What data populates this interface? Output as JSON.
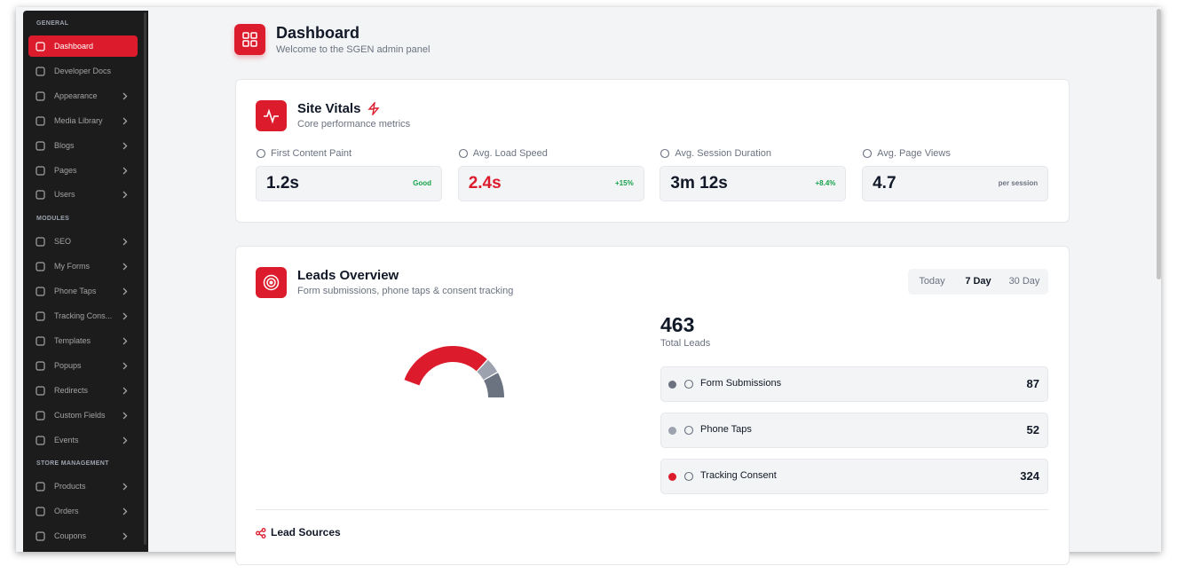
{
  "sidebar": {
    "sections": [
      {
        "title": "GENERAL",
        "items": [
          {
            "label": "Dashboard",
            "active": true,
            "submenu": false
          },
          {
            "label": "Developer Docs",
            "active": false,
            "submenu": false
          },
          {
            "label": "Appearance",
            "active": false,
            "submenu": true
          },
          {
            "label": "Media Library",
            "active": false,
            "submenu": true
          },
          {
            "label": "Blogs",
            "active": false,
            "submenu": true
          },
          {
            "label": "Pages",
            "active": false,
            "submenu": true
          },
          {
            "label": "Users",
            "active": false,
            "submenu": true
          }
        ]
      },
      {
        "title": "MODULES",
        "items": [
          {
            "label": "SEO",
            "active": false,
            "submenu": true
          },
          {
            "label": "My Forms",
            "active": false,
            "submenu": true
          },
          {
            "label": "Phone Taps",
            "active": false,
            "submenu": true
          },
          {
            "label": "Tracking Cons...",
            "active": false,
            "submenu": true
          },
          {
            "label": "Templates",
            "active": false,
            "submenu": true
          },
          {
            "label": "Popups",
            "active": false,
            "submenu": true
          },
          {
            "label": "Redirects",
            "active": false,
            "submenu": true
          },
          {
            "label": "Custom Fields",
            "active": false,
            "submenu": true
          },
          {
            "label": "Events",
            "active": false,
            "submenu": true
          }
        ]
      },
      {
        "title": "STORE MANAGEMENT",
        "items": [
          {
            "label": "Products",
            "active": false,
            "submenu": true
          },
          {
            "label": "Orders",
            "active": false,
            "submenu": true
          },
          {
            "label": "Coupons",
            "active": false,
            "submenu": true
          }
        ]
      }
    ]
  },
  "header": {
    "title": "Dashboard",
    "subtitle": "Welcome to the SGEN admin panel"
  },
  "site_vitals": {
    "title": "Site Vitals",
    "subtitle": "Core performance metrics",
    "metrics": [
      {
        "label": "First Content Paint",
        "value": "1.2s",
        "badge": "Good",
        "value_color": "#111827",
        "badge_color": "#16a34a"
      },
      {
        "label": "Avg. Load Speed",
        "value": "2.4s",
        "badge": "+15%",
        "value_color": "#dc1c2c",
        "badge_color": "#16a34a"
      },
      {
        "label": "Avg. Session Duration",
        "value": "3m 12s",
        "badge": "+8.4%",
        "value_color": "#111827",
        "badge_color": "#16a34a"
      },
      {
        "label": "Avg. Page Views",
        "value": "4.7",
        "badge": "per session",
        "value_color": "#111827",
        "badge_color": "#6b7280"
      }
    ]
  },
  "leads": {
    "title": "Leads Overview",
    "subtitle": "Form submissions, phone taps & consent tracking",
    "ranges": [
      "Today",
      "7 Day",
      "30 Day"
    ],
    "selected_range": 1,
    "total": 463,
    "total_label": "Total Leads",
    "sources": [
      {
        "name": "Form Submissions",
        "value": 87,
        "color": "#6b7280"
      },
      {
        "name": "Phone Taps",
        "value": 52,
        "color": "#9ca3af"
      },
      {
        "name": "Tracking Consent",
        "value": 324,
        "color": "#dc1c2c"
      }
    ],
    "lead_sources_title": "Lead Sources"
  }
}
